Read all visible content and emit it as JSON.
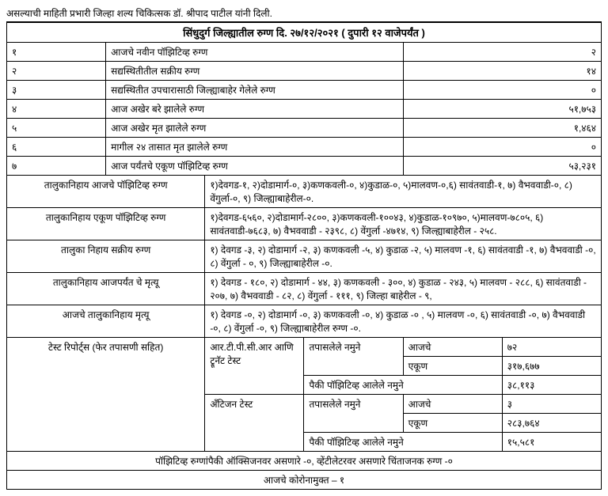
{
  "topLine": "असल्याची माहिती प्रभारी जिल्हा शल्य चिकित्सक डॉ. श्रीपाद पाटील यांनी दिली.",
  "title": "सिंधुदुर्ग जिल्ह्यातील रुग्ण दि. २७/१२/२०२१ ( दुपारी १२ वाजेपर्यंत )",
  "rows": [
    {
      "n": "१",
      "label": "आजचे नवीन पॉझिटिव्ह रुग्ण",
      "val": "२"
    },
    {
      "n": "२",
      "label": "सद्यस्थितीतील सक्रीय रुग्ण",
      "val": "१४"
    },
    {
      "n": "३",
      "label": "सद्यस्थितीत उपचारासाठी जिल्ह्याबाहेर गेलेले रुग्ण",
      "val": "०"
    },
    {
      "n": "४",
      "label": "आज अखेर बरे झालेले रुग्ण",
      "val": "५१,७५३"
    },
    {
      "n": "५",
      "label": "आज अखेर मृत झालेले रुग्ण",
      "val": "१,४६४"
    },
    {
      "n": "६",
      "label": "मागील २४ तासात मृत झालेले रुग्ण",
      "val": "०"
    },
    {
      "n": "७",
      "label": "आज पर्यंतचे एकूण पॉझिटिव्ह रुग्ण",
      "val": "५३,२३१"
    }
  ],
  "taluka": [
    {
      "label": "तालुकानिहाय आजचे पॉझिटिव्ह रुग्ण",
      "val": "१)देवगड-१, २)दोडामार्ग-०, ३)कणकवली-०, ४)कुडाळ-०, ५)मालवण-०,६) सावंतवाडी-१, ७) वैभववाडी-०, ८) वेंगुर्ला-०, ९) जिल्ह्याबाहेरील-०."
    },
    {
      "label": "तालुकानिहाय एकूण पॉझिटिव्ह रुग्ण",
      "val": "१)देवगड-६५६०, २)दोडामार्ग-२८००, ३)कणकवली-१००४३, ४)कुडाळ-१०९७०, ५)मालवण-७८०५, ६) सावंतवाडी-७६८३, ७) वैभववाडी - २३९८, ८) वेंगुर्ला -४७१४, ९) जिल्ह्याबाहेरील - २५८."
    },
    {
      "label": "तालुका निहाय सक्रीय रुग्ण",
      "val": "१) देवगड -३, २) दोडामार्ग -२, ३) कणकवली -५, ४) कुडाळ -२, ५) मालवण -१, ६) सावंतवाडी -१, ७) वैभववाडी -०, ८) वेंगुर्ला - ०, ९) जिल्ह्याबाहेरील -०."
    },
    {
      "label": "तालुकानिहाय आजपर्यंत चे मृत्यू",
      "val": "१) देवगड - १८०,  २) दोडामार्ग - ४४, ३) कणकवली - ३००, ४) कुडाळ - २४३, ५) मालवण - २८८, ६) सावंतवाडी - २०७, ७) वैभववाडी - ८२, ८) वेंगुर्ला - १११, ९) जिल्हा बाहेरील - ९,"
    },
    {
      "label": "आजचे तालुकानिहाय मृत्यू",
      "val": "१) देवगड -०,  २) दोडामार्ग -०, ३) कणकवली -०, ४) कुडाळ -० , ५) मालवण -०, ६) सावंतवाडी -०, ७) वैभववाडी -०, ८) वेंगुर्ला -०, ९) जिल्ह्याबाहेरील रुग्ण -०."
    }
  ],
  "testLabel": "टेस्ट रिपोर्ट्स (फेर तपासणी सहित)",
  "tests": {
    "rtpcr": {
      "name": "आर.टी.पी.सी.आर आणि ट्रूनॅट टेस्ट",
      "metric1": "तपासलेले नमुने",
      "today_label": "आजचे",
      "today": "७२",
      "total_label": "एकूण",
      "total": "३१७,६७७",
      "pos_label": "पैकी पॉझिटिव्ह आलेले नमुने",
      "pos": "३८,११३"
    },
    "antigen": {
      "name": "अँटिजन टेस्ट",
      "metric1": "तपासलेले नमुने",
      "today_label": "आजचे",
      "today": "३",
      "total_label": "एकूण",
      "total": "२८३,७६४",
      "pos_label": "पैकी पॉझिटिव्ह आलेले नमुने",
      "pos": "१५,५८१"
    }
  },
  "bottom1": "पॉझिटिव्ह रुग्णांपैकी ऑक्सिजनवर असणारे -०, व्हेंटीलेटरवर असणारे चिंताजनक रुग्ण -०",
  "bottom2": "आजचे कोरोनामुक्त – १"
}
